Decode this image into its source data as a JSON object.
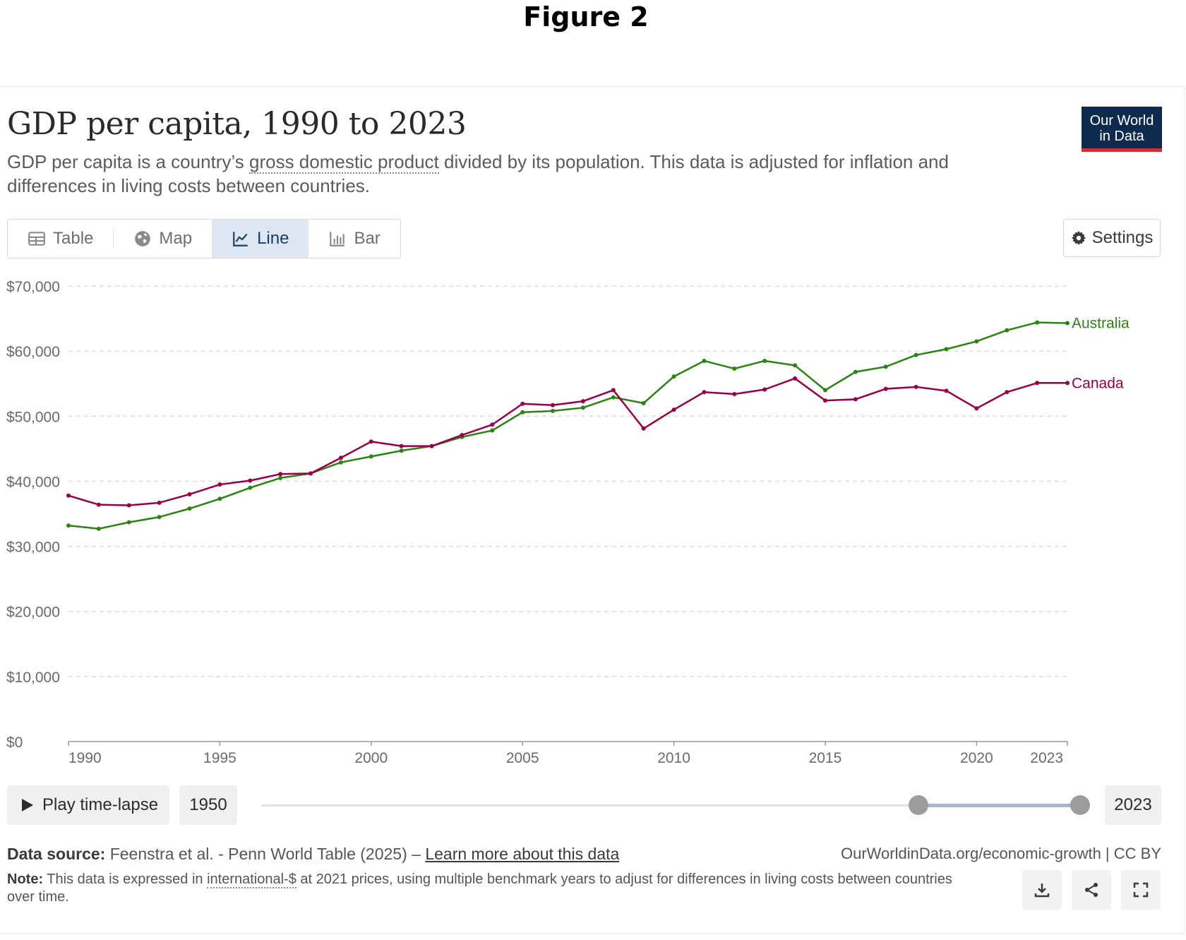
{
  "figure_label": "Figure 2",
  "header": {
    "title": "GDP per capita, 1990 to 2023",
    "subtitle_pre": "GDP per capita is a country’s ",
    "subtitle_link": "gross domestic product",
    "subtitle_post": " divided by its population. This data is adjusted for inflation and differences in living costs between countries.",
    "logo_line1": "Our World",
    "logo_line2": "in Data"
  },
  "tabs": [
    {
      "label": "Table",
      "icon": "table-icon",
      "active": false
    },
    {
      "label": "Map",
      "icon": "globe-icon",
      "active": false
    },
    {
      "label": "Line",
      "icon": "line-chart-icon",
      "active": true
    },
    {
      "label": "Bar",
      "icon": "bar-chart-icon",
      "active": false
    }
  ],
  "settings_label": "Settings",
  "chart_data": {
    "type": "line",
    "title": "GDP per capita, 1990 to 2023",
    "xlabel": "",
    "ylabel": "",
    "x": [
      1990,
      1991,
      1992,
      1993,
      1994,
      1995,
      1996,
      1997,
      1998,
      1999,
      2000,
      2001,
      2002,
      2003,
      2004,
      2005,
      2006,
      2007,
      2008,
      2009,
      2010,
      2011,
      2012,
      2013,
      2014,
      2015,
      2016,
      2017,
      2018,
      2019,
      2020,
      2021,
      2022,
      2023
    ],
    "xlim": [
      1990,
      2023
    ],
    "ylim": [
      0,
      70000
    ],
    "x_ticks": [
      "1990",
      "1995",
      "2000",
      "2005",
      "2010",
      "2015",
      "2020",
      "2023"
    ],
    "y_ticks": [
      "$0",
      "$10,000",
      "$20,000",
      "$30,000",
      "$40,000",
      "$50,000",
      "$60,000",
      "$70,000"
    ],
    "grid": true,
    "legend": "inline-right",
    "series": [
      {
        "name": "Australia",
        "color": "#2c8212",
        "values": [
          33200,
          32700,
          33700,
          34500,
          35800,
          37300,
          39000,
          40500,
          41200,
          42900,
          43800,
          44700,
          45400,
          46800,
          47800,
          50600,
          50800,
          51300,
          52900,
          52000,
          56100,
          58500,
          57300,
          58500,
          57800,
          54000,
          56800,
          57600,
          59400,
          60300,
          61500,
          63200,
          64400,
          64300
        ]
      },
      {
        "name": "Canada",
        "color": "#970046",
        "values": [
          37800,
          36400,
          36300,
          36700,
          38000,
          39500,
          40100,
          41100,
          41200,
          43600,
          46100,
          45400,
          45400,
          47100,
          48700,
          51900,
          51700,
          52300,
          54000,
          48100,
          51000,
          53700,
          53400,
          54100,
          55800,
          52400,
          52600,
          54200,
          54500,
          53900,
          51200,
          53700,
          55100,
          55100
        ]
      }
    ]
  },
  "timeline": {
    "play_label": "Play time-lapse",
    "start_year": "1950",
    "end_year": "2023",
    "range_start_fraction": 0.803,
    "range_end_fraction": 1.0
  },
  "footer": {
    "source_label": "Data source:",
    "source_text": " Feenstra et al. - Penn World Table (2025) – ",
    "source_link": "Learn more about this data",
    "attribution": "OurWorldinData.org/economic-growth | CC BY",
    "note_label": "Note:",
    "note_pre": " This data is expressed in ",
    "note_link": "international-$",
    "note_post": " at 2021 prices, using multiple benchmark years to adjust for differences in living costs between countries over time."
  },
  "action_icons": [
    "download-icon",
    "share-icon",
    "fullscreen-icon"
  ]
}
